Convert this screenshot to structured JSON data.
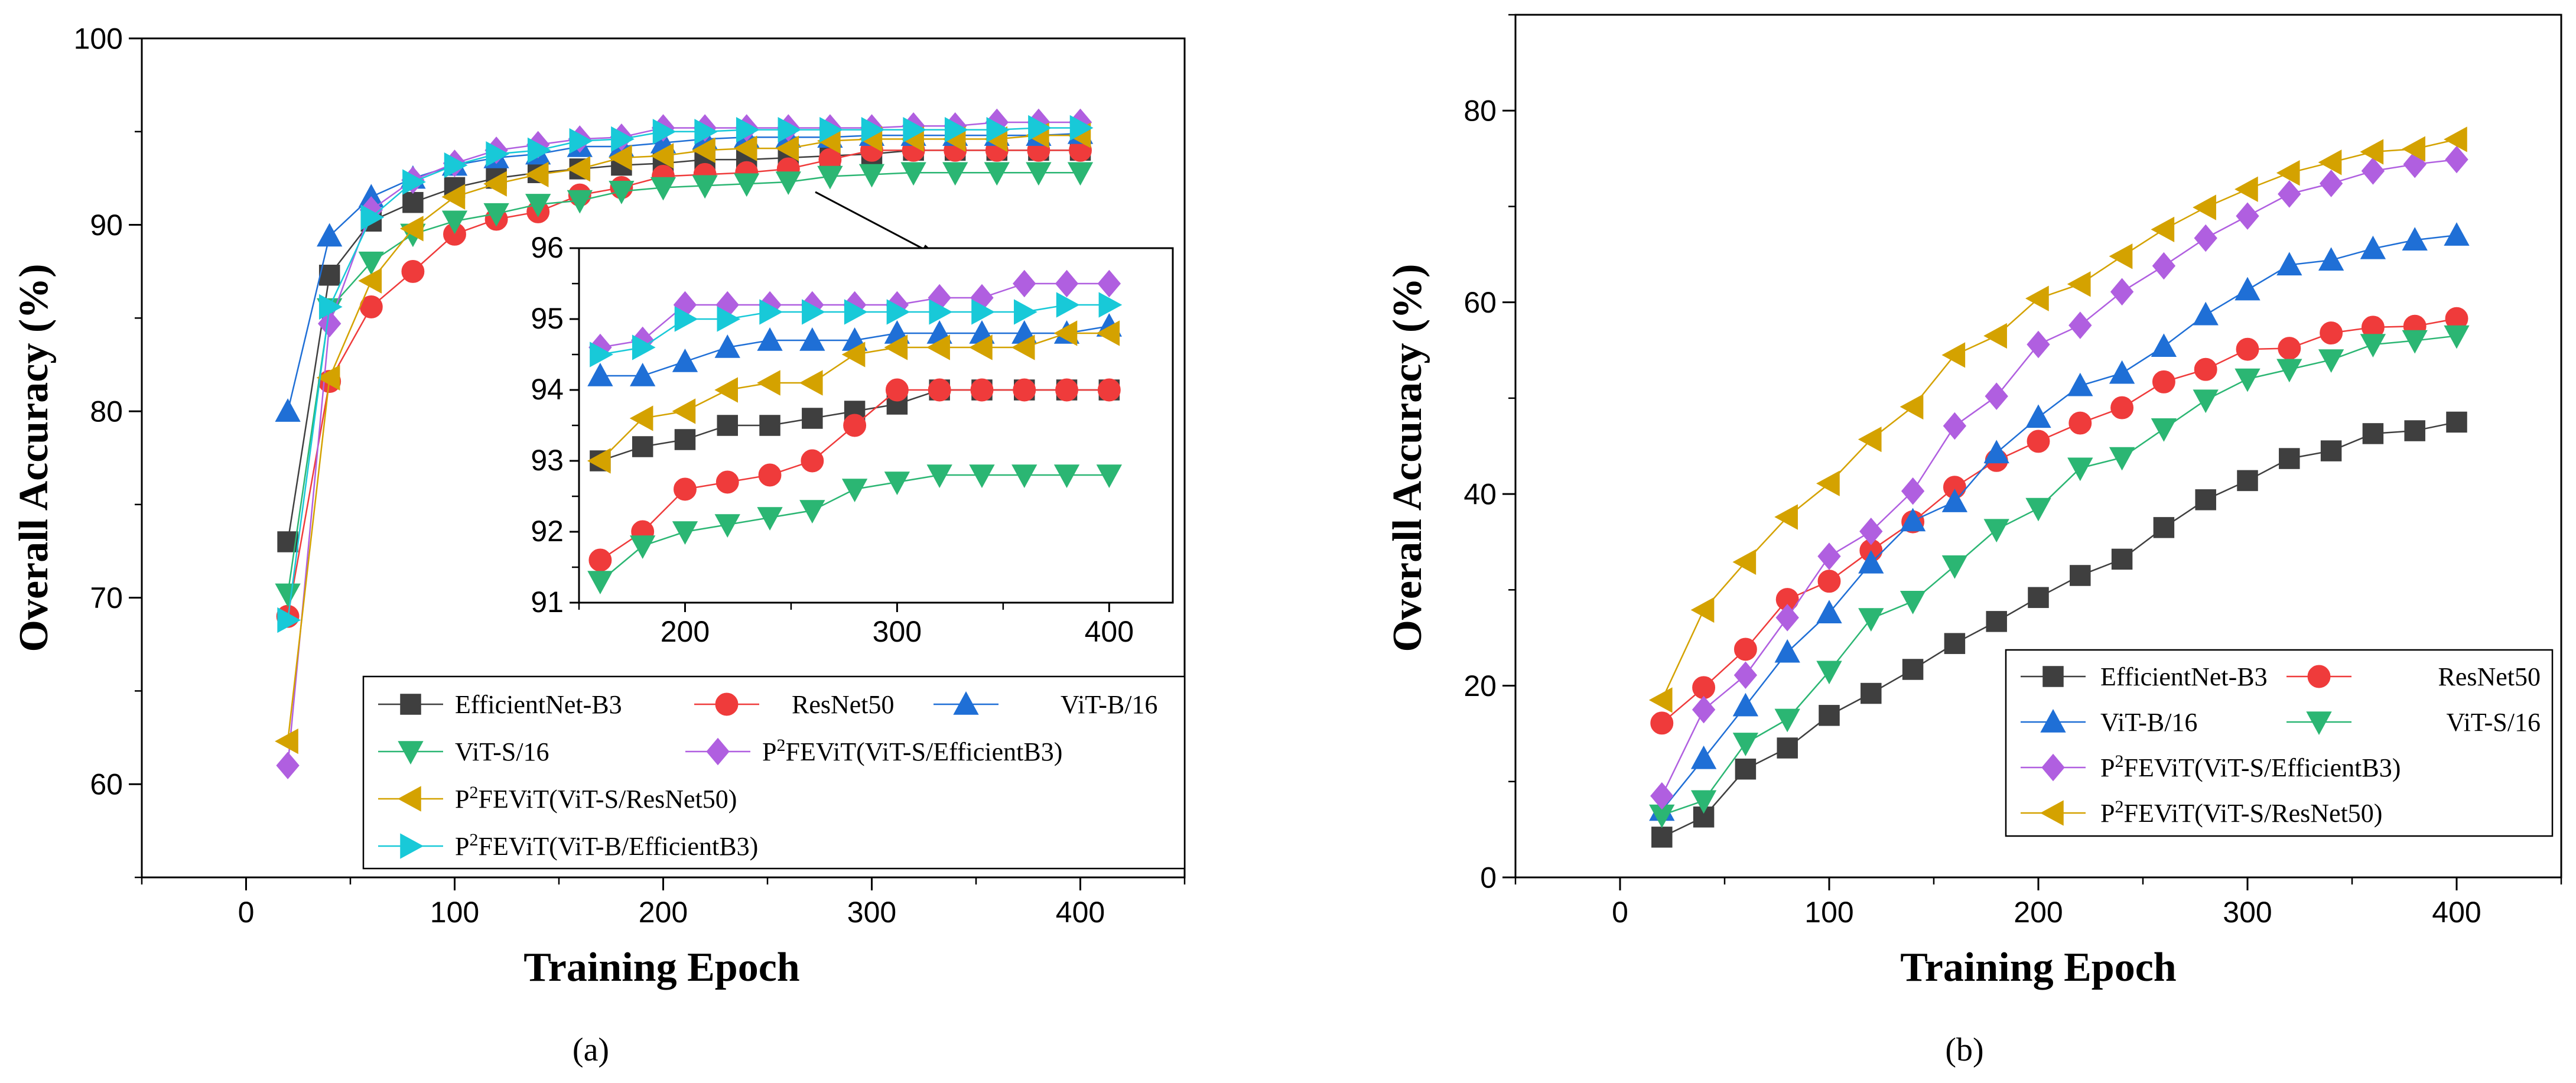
{
  "chart_data": [
    {
      "type": "line",
      "panel_label": "(a)",
      "xlabel": "Training Epoch",
      "ylabel": "Overall Accuracy (%)",
      "xlim": [
        -50,
        450
      ],
      "ylim": [
        55,
        100
      ],
      "xticks": [
        0,
        100,
        200,
        300,
        400
      ],
      "yticks": [
        60,
        70,
        80,
        90,
        100
      ],
      "x": [
        20,
        40,
        60,
        80,
        100,
        120,
        140,
        160,
        180,
        200,
        220,
        240,
        260,
        280,
        300,
        320,
        340,
        360,
        380,
        400
      ],
      "series": [
        {
          "name": "EfficientNet-B3",
          "name_sup": "",
          "name_rest": "",
          "color": "#3f3f3f",
          "marker": "square",
          "values": [
            73.0,
            87.3,
            90.2,
            91.2,
            92.0,
            92.5,
            92.8,
            93.0,
            93.2,
            93.3,
            93.5,
            93.5,
            93.6,
            93.7,
            93.8,
            94.0,
            94.0,
            94.0,
            94.0,
            94.0
          ]
        },
        {
          "name": "ResNet50",
          "name_sup": "",
          "name_rest": "",
          "color": "#ef3b3b",
          "marker": "circle",
          "values": [
            69.0,
            81.6,
            85.6,
            87.5,
            89.5,
            90.3,
            90.7,
            91.6,
            92.0,
            92.6,
            92.7,
            92.8,
            93.0,
            93.5,
            94.0,
            94.0,
            94.0,
            94.0,
            94.0,
            94.0
          ]
        },
        {
          "name": "ViT-B/16",
          "name_sup": "",
          "name_rest": "",
          "color": "#1f6fd6",
          "marker": "triangle-up",
          "values": [
            80.0,
            89.4,
            91.5,
            92.5,
            93.2,
            93.6,
            93.8,
            94.2,
            94.2,
            94.4,
            94.6,
            94.7,
            94.7,
            94.7,
            94.8,
            94.8,
            94.8,
            94.8,
            94.8,
            94.9
          ]
        },
        {
          "name": "ViT-S/16",
          "name_sup": "",
          "name_rest": "",
          "color": "#2bb673",
          "marker": "triangle-down",
          "values": [
            70.2,
            85.5,
            88.0,
            89.5,
            90.2,
            90.6,
            91.1,
            91.3,
            91.8,
            92.0,
            92.1,
            92.2,
            92.3,
            92.6,
            92.7,
            92.8,
            92.8,
            92.8,
            92.8,
            92.8
          ]
        },
        {
          "name": "P",
          "name_sup": "2",
          "name_rest": "FEViT(ViT-S/EfficientB3)",
          "color": "#b05fe0",
          "marker": "diamond",
          "values": [
            61.0,
            84.7,
            90.8,
            92.4,
            93.3,
            94.0,
            94.3,
            94.6,
            94.7,
            95.2,
            95.2,
            95.2,
            95.2,
            95.2,
            95.2,
            95.3,
            95.3,
            95.5,
            95.5,
            95.5
          ]
        },
        {
          "name": "P",
          "name_sup": "2",
          "name_rest": "FEViT(ViT-S/ResNet50)",
          "color": "#d4a200",
          "marker": "triangle-left",
          "values": [
            62.3,
            81.8,
            87.0,
            89.8,
            91.5,
            92.2,
            92.7,
            93.0,
            93.6,
            93.7,
            94.0,
            94.1,
            94.1,
            94.5,
            94.6,
            94.6,
            94.6,
            94.6,
            94.8,
            94.8
          ]
        },
        {
          "name": "P",
          "name_sup": "2",
          "name_rest": "FEViT(ViT-B/EfficientB3)",
          "color": "#18c9d8",
          "marker": "triangle-right",
          "values": [
            68.8,
            85.6,
            90.4,
            92.3,
            93.2,
            93.8,
            94.0,
            94.5,
            94.6,
            95.0,
            95.0,
            95.1,
            95.1,
            95.1,
            95.1,
            95.1,
            95.1,
            95.1,
            95.2,
            95.2
          ]
        }
      ],
      "inset": {
        "xlim": [
          150,
          430
        ],
        "ylim": [
          91,
          96
        ],
        "xticks": [
          200,
          300,
          400
        ],
        "yticks": [
          91,
          92,
          93,
          94,
          95,
          96
        ],
        "x_from": 160
      },
      "legend": {
        "position": "bottom-right",
        "columns": 3
      }
    },
    {
      "type": "line",
      "panel_label": "(b)",
      "xlabel": "Training Epoch",
      "ylabel": "Overall Accuracy (%)",
      "xlim": [
        -50,
        450
      ],
      "ylim": [
        0,
        90
      ],
      "xticks": [
        0,
        100,
        200,
        300,
        400
      ],
      "yticks": [
        0,
        20,
        40,
        60,
        80
      ],
      "x": [
        20,
        40,
        60,
        80,
        100,
        120,
        140,
        160,
        180,
        200,
        220,
        240,
        260,
        280,
        300,
        320,
        340,
        360,
        380,
        400
      ],
      "series": [
        {
          "name": "EfficientNet-B3",
          "name_sup": "",
          "name_rest": "",
          "color": "#3f3f3f",
          "marker": "square",
          "values": [
            4.2,
            6.3,
            11.3,
            13.5,
            16.9,
            19.2,
            21.7,
            24.4,
            26.7,
            29.2,
            31.5,
            33.2,
            36.5,
            39.4,
            41.4,
            43.7,
            44.5,
            46.3,
            46.6,
            47.5
          ]
        },
        {
          "name": "ResNet50",
          "name_sup": "",
          "name_rest": "",
          "color": "#ef3b3b",
          "marker": "circle",
          "values": [
            16.1,
            19.8,
            23.8,
            29.0,
            30.9,
            34.1,
            37.1,
            40.7,
            43.5,
            45.5,
            47.4,
            49.0,
            51.7,
            53.0,
            55.1,
            55.2,
            56.8,
            57.4,
            57.5,
            58.3
          ]
        },
        {
          "name": "ViT-B/16",
          "name_sup": "",
          "name_rest": "",
          "color": "#1f6fd6",
          "marker": "triangle-up",
          "values": [
            7.0,
            12.4,
            17.9,
            23.5,
            27.6,
            32.8,
            37.2,
            39.2,
            44.3,
            48.0,
            51.3,
            52.6,
            55.4,
            58.7,
            61.3,
            63.9,
            64.4,
            65.6,
            66.5,
            67.0
          ]
        },
        {
          "name": "ViT-S/16",
          "name_sup": "",
          "name_rest": "",
          "color": "#2bb673",
          "marker": "triangle-down",
          "values": [
            6.5,
            8.0,
            14.0,
            16.5,
            21.5,
            27.0,
            28.8,
            32.5,
            36.3,
            38.5,
            42.7,
            43.8,
            46.8,
            49.8,
            52.0,
            53.0,
            54.0,
            55.6,
            56.0,
            56.5
          ]
        },
        {
          "name": "P",
          "name_sup": "2",
          "name_rest": "FEViT(ViT-S/EfficientB3)",
          "color": "#b05fe0",
          "marker": "diamond",
          "values": [
            8.5,
            17.5,
            21.1,
            27.1,
            33.5,
            36.1,
            40.3,
            47.1,
            50.2,
            55.6,
            57.6,
            61.1,
            63.8,
            66.7,
            69.0,
            71.3,
            72.4,
            73.7,
            74.4,
            74.9
          ]
        },
        {
          "name": "P",
          "name_sup": "2",
          "name_rest": "FEViT(ViT-S/ResNet50)",
          "color": "#d4a200",
          "marker": "triangle-left",
          "values": [
            18.5,
            27.9,
            32.9,
            37.6,
            41.1,
            45.7,
            49.1,
            54.5,
            56.5,
            60.4,
            61.9,
            64.8,
            67.6,
            69.9,
            71.8,
            73.5,
            74.6,
            75.7,
            76.0,
            77.0
          ]
        }
      ],
      "legend": {
        "position": "bottom-right",
        "columns": 2
      }
    }
  ]
}
